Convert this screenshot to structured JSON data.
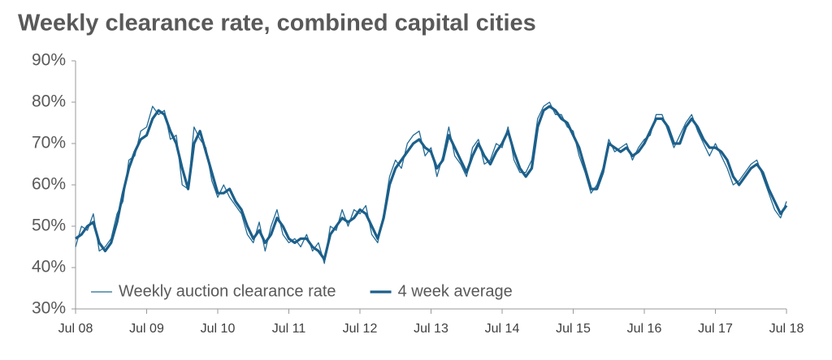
{
  "chart_data": {
    "type": "line",
    "title": "Weekly clearance rate, combined capital cities",
    "categories": [
      "Jul 08",
      null,
      null,
      null,
      null,
      null,
      null,
      null,
      null,
      null,
      null,
      null,
      "Jul 09",
      null,
      null,
      null,
      null,
      null,
      null,
      null,
      null,
      null,
      null,
      null,
      "Jul 10",
      null,
      null,
      null,
      null,
      null,
      null,
      null,
      null,
      null,
      null,
      null,
      "Jul 11",
      null,
      null,
      null,
      null,
      null,
      null,
      null,
      null,
      null,
      null,
      null,
      "Jul 12",
      null,
      null,
      null,
      null,
      null,
      null,
      null,
      null,
      null,
      null,
      null,
      "Jul 13",
      null,
      null,
      null,
      null,
      null,
      null,
      null,
      null,
      null,
      null,
      null,
      "Jul 14",
      null,
      null,
      null,
      null,
      null,
      null,
      null,
      null,
      null,
      null,
      null,
      "Jul 15",
      null,
      null,
      null,
      null,
      null,
      null,
      null,
      null,
      null,
      null,
      null,
      "Jul 16",
      null,
      null,
      null,
      null,
      null,
      null,
      null,
      null,
      null,
      null,
      null,
      "Jul 17",
      null,
      null,
      null,
      null,
      null,
      null,
      null,
      null,
      null,
      null,
      null,
      "Jul 18"
    ],
    "series": [
      {
        "name": "Weekly auction clearance rate",
        "color": "#236a95",
        "width": 1.3,
        "values": [
          45,
          50,
          49,
          53,
          44,
          45,
          47,
          53,
          56,
          66,
          67,
          73,
          74,
          79,
          77,
          78,
          71,
          72,
          60,
          59,
          74,
          71,
          69,
          61,
          57,
          60,
          57,
          55,
          53,
          48,
          46,
          51,
          44,
          50,
          54,
          48,
          46,
          47,
          45,
          48,
          44,
          46,
          41,
          50,
          49,
          54,
          50,
          54,
          53,
          55,
          48,
          46,
          53,
          62,
          66,
          64,
          70,
          72,
          73,
          67,
          69,
          62,
          67,
          74,
          67,
          65,
          62,
          69,
          71,
          65,
          66,
          70,
          69,
          74,
          66,
          63,
          63,
          66,
          76,
          79,
          80,
          77,
          77,
          74,
          73,
          67,
          63,
          58,
          60,
          64,
          71,
          68,
          69,
          70,
          66,
          69,
          71,
          72,
          77,
          77,
          73,
          69,
          72,
          75,
          77,
          73,
          70,
          67,
          70,
          67,
          64,
          60,
          61,
          63,
          65,
          66,
          62,
          58,
          54,
          52,
          56
        ]
      },
      {
        "name": "4 week average",
        "color": "#1c5f8a",
        "width": 3.2,
        "values": [
          47,
          48,
          50,
          51,
          46,
          44,
          46,
          51,
          58,
          64,
          68,
          71,
          72,
          76,
          78,
          77,
          73,
          70,
          64,
          59,
          70,
          73,
          68,
          63,
          58,
          58,
          59,
          56,
          54,
          50,
          47,
          49,
          46,
          48,
          52,
          50,
          47,
          46,
          47,
          47,
          45,
          44,
          42,
          48,
          50,
          52,
          51,
          52,
          54,
          53,
          50,
          47,
          52,
          60,
          64,
          66,
          68,
          70,
          71,
          69,
          68,
          64,
          66,
          72,
          69,
          66,
          63,
          67,
          70,
          67,
          65,
          68,
          70,
          73,
          68,
          64,
          62,
          64,
          74,
          78,
          79,
          78,
          76,
          75,
          72,
          69,
          64,
          59,
          59,
          63,
          70,
          69,
          68,
          69,
          67,
          68,
          70,
          73,
          76,
          76,
          74,
          70,
          70,
          74,
          76,
          74,
          71,
          69,
          69,
          68,
          66,
          62,
          60,
          62,
          64,
          65,
          63,
          59,
          56,
          53,
          55
        ]
      }
    ],
    "ylim": [
      30,
      90
    ],
    "yticks": [
      {
        "value": 30,
        "label": "30%"
      },
      {
        "value": 40,
        "label": "40%"
      },
      {
        "value": 50,
        "label": "50%"
      },
      {
        "value": 60,
        "label": "60%"
      },
      {
        "value": 70,
        "label": "70%"
      },
      {
        "value": 80,
        "label": "80%"
      },
      {
        "value": 90,
        "label": "90%"
      }
    ],
    "grid": false,
    "legend": "bottom-left"
  }
}
